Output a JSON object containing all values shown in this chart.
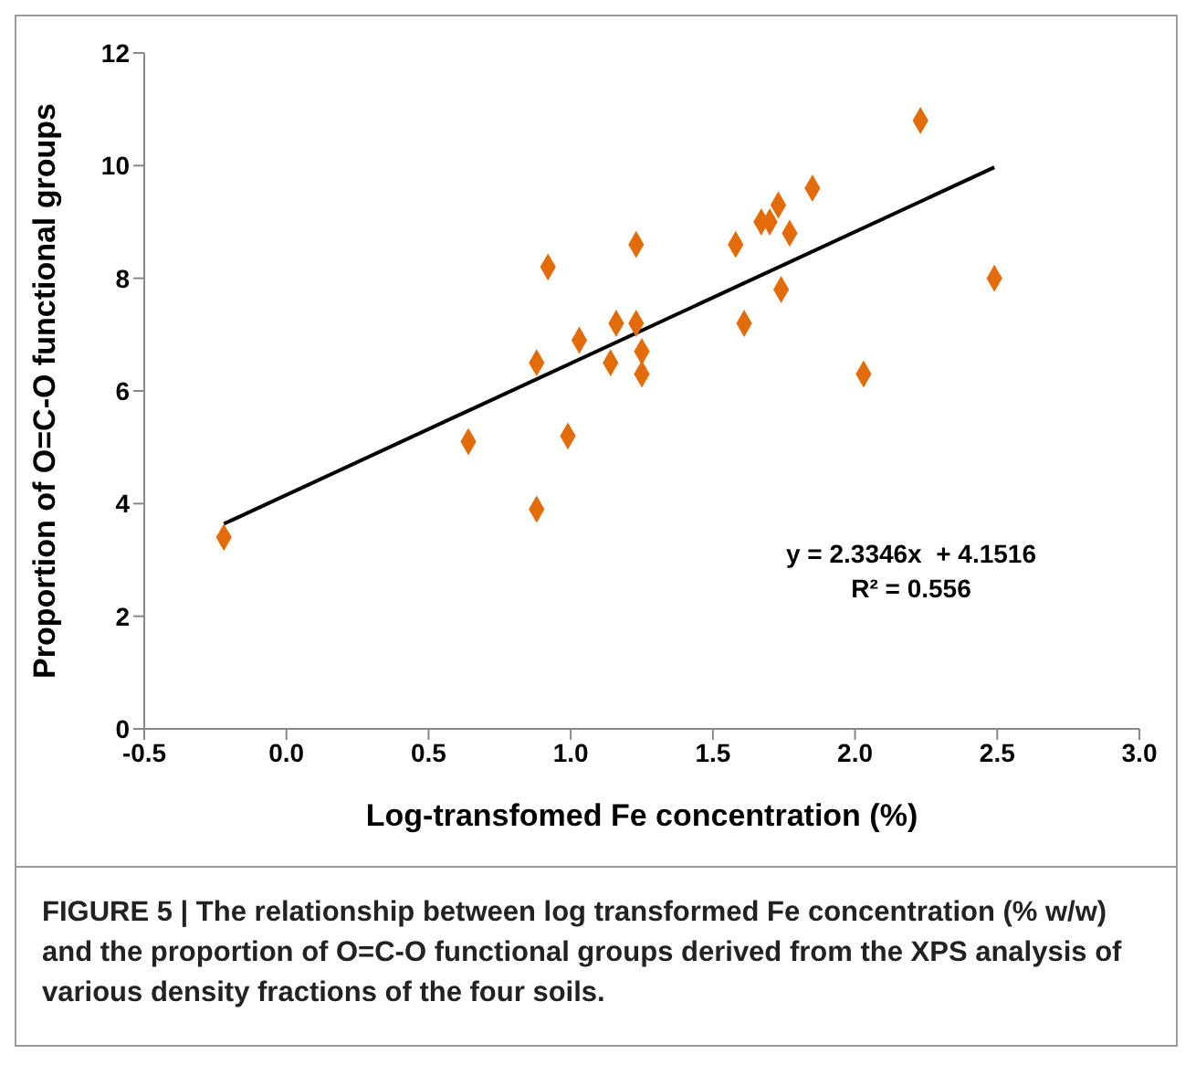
{
  "chart_data": {
    "type": "scatter",
    "xlabel": "Log-transfomed Fe concentration (%)",
    "ylabel": "Proportion of O=C-O functional groups",
    "xlim": [
      -0.5,
      3.0
    ],
    "xticks": [
      {
        "value": -0.5,
        "label": "-0.5"
      },
      {
        "value": 0,
        "label": "0.0"
      },
      {
        "value": 0.5,
        "label": "0.5"
      },
      {
        "value": 1,
        "label": "1.0"
      },
      {
        "value": 1.5,
        "label": "1.5"
      },
      {
        "value": 2,
        "label": "2.0"
      },
      {
        "value": 2.5,
        "label": "2.5"
      },
      {
        "value": 3,
        "label": "3.0"
      }
    ],
    "ylim": [
      0,
      12
    ],
    "yticks": [
      0,
      2,
      4,
      6,
      8,
      10,
      12
    ],
    "series": [
      {
        "marker": "diamond",
        "color": "#e36c0a",
        "x": [
          -0.22,
          0.64,
          0.88,
          0.88,
          0.92,
          0.99,
          1.03,
          1.14,
          1.16,
          1.23,
          1.23,
          1.25,
          1.25,
          1.58,
          1.61,
          1.67,
          1.7,
          1.73,
          1.74,
          1.77,
          1.85,
          2.03,
          2.23,
          2.49
        ],
        "values": [
          3.4,
          5.1,
          3.9,
          6.5,
          8.2,
          5.2,
          6.9,
          6.5,
          7.2,
          7.2,
          8.6,
          6.7,
          6.3,
          8.6,
          7.2,
          9.0,
          9.0,
          9.3,
          7.8,
          8.8,
          9.6,
          6.3,
          10.8,
          8.0
        ]
      },
      {
        "type": "line",
        "color": "#000000",
        "line_style": "solid",
        "x": [
          -0.22,
          2.49
        ],
        "values": [
          3.64,
          9.97
        ]
      }
    ],
    "annotations": [
      "y = 2.3346x  + 4.1516",
      "R² = 0.556",
      "FIGURE 5 | The relationship between log transformed Fe concentration (% w/w) and the proportion of O=C-O functional groups derived from the XPS analysis of various density fractions of the four soils."
    ]
  }
}
